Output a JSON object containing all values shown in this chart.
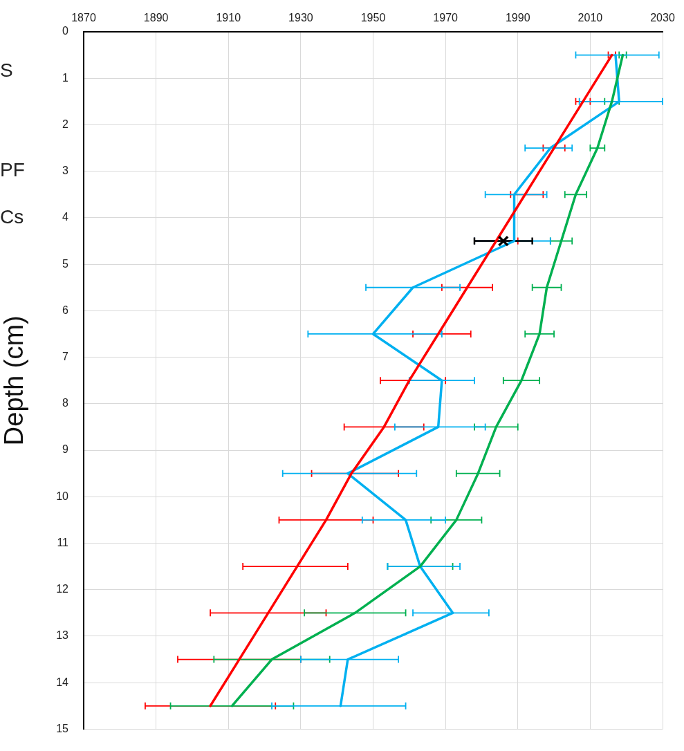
{
  "chart_data": {
    "type": "line",
    "ylabel": "Depth (cm)",
    "xlim": [
      1870,
      2030
    ],
    "xticks": [
      1870,
      1890,
      1910,
      1930,
      1950,
      1970,
      1990,
      2010,
      2030
    ],
    "ylim": [
      15,
      0
    ],
    "yticks": [
      0,
      1,
      2,
      3,
      4,
      5,
      6,
      7,
      8,
      9,
      10,
      11,
      12,
      13,
      14,
      15
    ],
    "grid": true,
    "marker": "none",
    "annotations": [
      "S",
      "PF",
      "Cs"
    ],
    "series": [
      {
        "color": "#ff0000",
        "x": [
          2016,
          2008,
          2000,
          1992,
          1984,
          1976,
          1968,
          1960,
          1953,
          1944,
          1937,
          1929,
          1921,
          1913,
          1905
        ],
        "values": [
          0.5,
          1.5,
          2.5,
          3.5,
          4.5,
          5.5,
          6.5,
          7.5,
          8.5,
          9.5,
          10.5,
          11.5,
          12.5,
          13.5,
          14.5
        ],
        "xerrors": [
          [
            2015,
            2017
          ],
          [
            2006,
            2010
          ],
          [
            1997,
            2003
          ],
          [
            1988,
            1997
          ],
          [
            1978,
            1990
          ],
          [
            1969,
            1983
          ],
          [
            1961,
            1977
          ],
          [
            1952,
            1970
          ],
          [
            1942,
            1964
          ],
          [
            1933,
            1957
          ],
          [
            1924,
            1950
          ],
          [
            1914,
            1943
          ],
          [
            1905,
            1937
          ],
          [
            1896,
            1930
          ],
          [
            1887,
            1923
          ]
        ]
      },
      {
        "color": "#00b050",
        "x": [
          2019,
          2016,
          2012,
          2006,
          2002,
          1998,
          1996,
          1991,
          1984,
          1979,
          1973,
          1963,
          1945,
          1922,
          1911
        ],
        "values": [
          0.5,
          1.5,
          2.5,
          3.5,
          4.5,
          5.5,
          6.5,
          7.5,
          8.5,
          9.5,
          10.5,
          11.5,
          12.5,
          13.5,
          14.5
        ],
        "xerrors": [
          [
            2018,
            2020
          ],
          [
            2014,
            2018
          ],
          [
            2010,
            2014
          ],
          [
            2003,
            2009
          ],
          [
            1999,
            2005
          ],
          [
            1994,
            2002
          ],
          [
            1992,
            2000
          ],
          [
            1986,
            1996
          ],
          [
            1978,
            1990
          ],
          [
            1973,
            1985
          ],
          [
            1966,
            1980
          ],
          [
            1954,
            1972
          ],
          [
            1931,
            1959
          ],
          [
            1906,
            1938
          ],
          [
            1894,
            1928
          ]
        ]
      },
      {
        "color": "#00b0f0",
        "x": [
          2017,
          2018,
          1999,
          1989,
          1989,
          1961,
          1950,
          1969,
          1968,
          1943,
          1959,
          1963,
          1972,
          1943,
          1941
        ],
        "values": [
          0.5,
          1.5,
          2.5,
          3.5,
          4.5,
          5.5,
          6.5,
          7.5,
          8.5,
          9.5,
          10.5,
          11.5,
          12.5,
          13.5,
          14.5
        ],
        "xerrors": [
          [
            2006,
            2029
          ],
          [
            2007,
            2030
          ],
          [
            1992,
            2005
          ],
          [
            1981,
            1998
          ],
          [
            1978,
            1999
          ],
          [
            1948,
            1974
          ],
          [
            1932,
            1969
          ],
          [
            1960,
            1978
          ],
          [
            1956,
            1981
          ],
          [
            1925,
            1962
          ],
          [
            1947,
            1970
          ],
          [
            1954,
            1974
          ],
          [
            1961,
            1982
          ],
          [
            1930,
            1957
          ],
          [
            1922,
            1959
          ]
        ]
      },
      {
        "type": "scatter",
        "marker": "cross",
        "color": "#000000",
        "x": [
          1986
        ],
        "values": [
          4.5
        ],
        "xerrors": [
          [
            1978,
            1994
          ]
        ]
      }
    ]
  }
}
